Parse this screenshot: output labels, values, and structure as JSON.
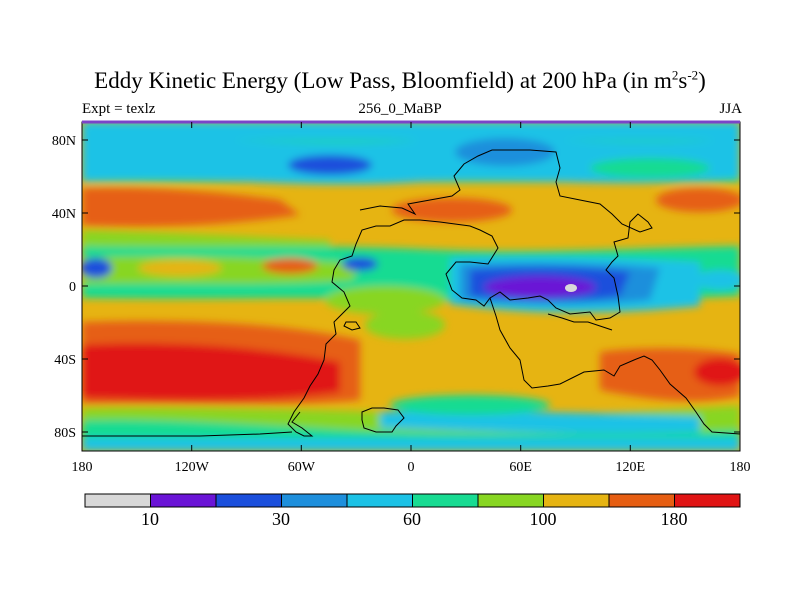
{
  "title": {
    "text": "Eddy Kinetic Energy (Low Pass, Bloomfield) at 200 hPa (in m",
    "sup1": "2",
    "mid": "s",
    "sup2": "-2",
    "end": ")"
  },
  "subtitle_left": "Expt = texlz",
  "subtitle_center": "256_0_MaBP",
  "subtitle_right": "JJA",
  "axes": {
    "y_ticks": [
      "80N",
      "40N",
      "0",
      "40S",
      "80S"
    ],
    "x_ticks": [
      "180",
      "120W",
      "60W",
      "0",
      "60E",
      "120E",
      "180"
    ]
  },
  "colorbar": {
    "labels": [
      "10",
      "30",
      "60",
      "100",
      "180"
    ],
    "colors": [
      "#d8d8d8",
      "#6a14d6",
      "#1b4fdc",
      "#1e8fdc",
      "#1cc2e6",
      "#18db92",
      "#88d622",
      "#e6b412",
      "#e65e12",
      "#e01414"
    ]
  },
  "map": {
    "background": "#e6b412"
  }
}
